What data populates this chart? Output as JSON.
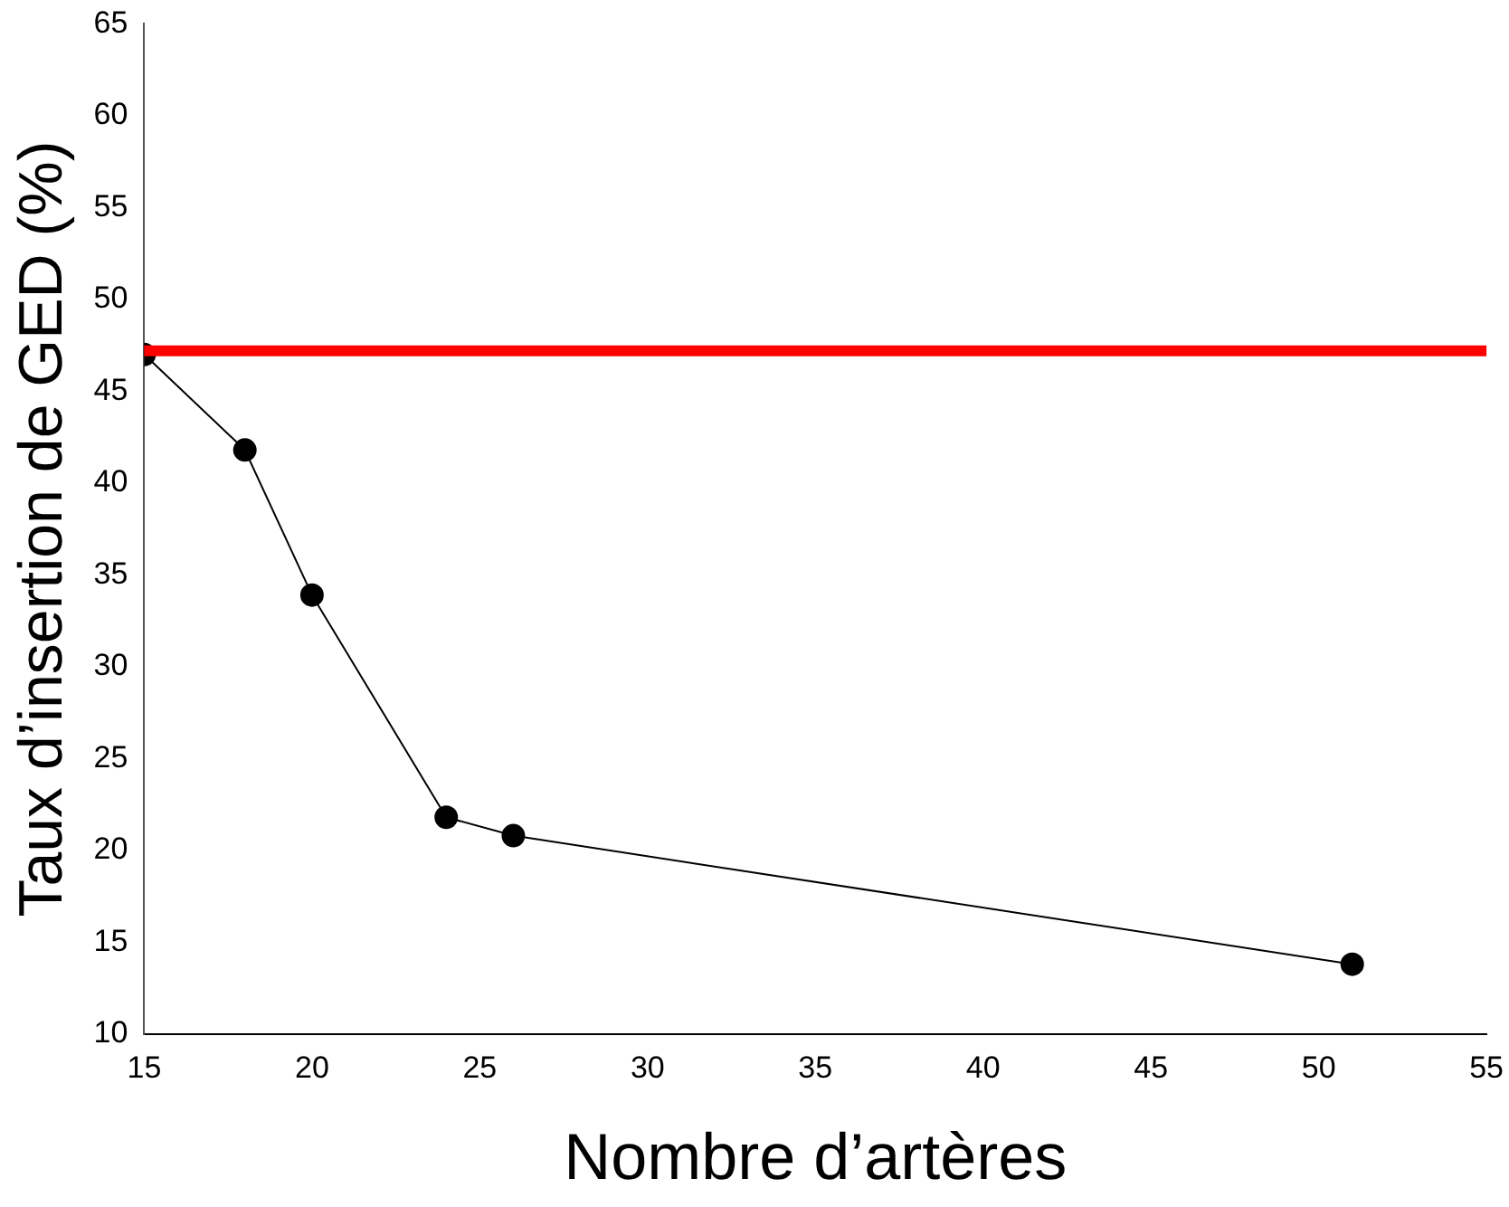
{
  "chart_data": {
    "type": "line",
    "xlabel": "Nombre d’artères",
    "ylabel": "Taux d’insertion de GED (%)",
    "x": [
      15,
      18,
      20,
      24,
      26,
      51
    ],
    "series": [
      {
        "color": "#000000",
        "values": [
          47,
          41.8,
          33.9,
          21.8,
          20.8,
          13.8
        ]
      }
    ],
    "xlim": [
      15,
      55
    ],
    "xticks": [
      15,
      20,
      25,
      30,
      35,
      40,
      45,
      50,
      55
    ],
    "ylim": [
      10,
      65
    ],
    "yticks": [
      10,
      15,
      20,
      25,
      30,
      35,
      40,
      45,
      50,
      55,
      60,
      65
    ],
    "ref_lines": [
      {
        "axis": "y",
        "value": 47.2,
        "color": "#ff0000"
      }
    ],
    "marker": "circle",
    "line_style": "solid",
    "grid": false,
    "legend": false
  }
}
